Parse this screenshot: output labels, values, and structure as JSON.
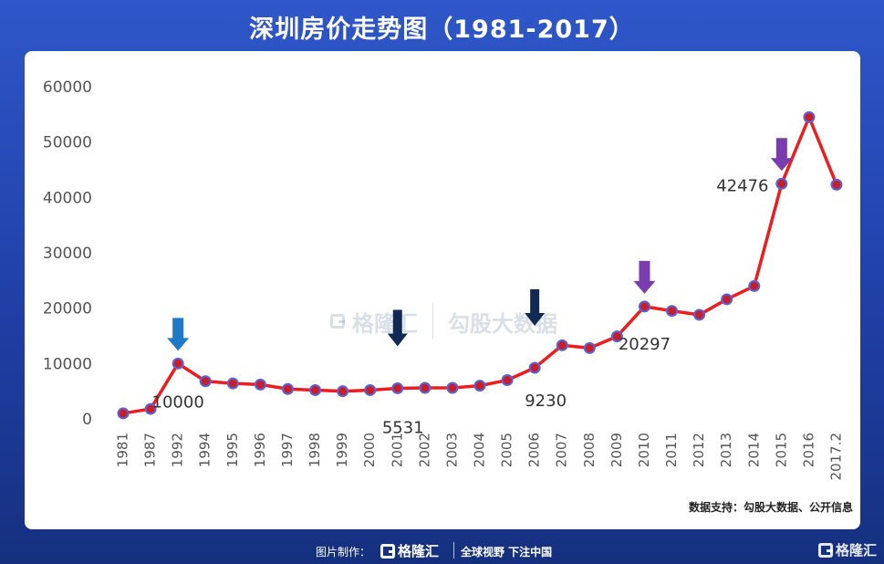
{
  "title": "深圳房价走势图（1981-2017）",
  "source": "数据支持：勾股大数据、公开信息",
  "footer": {
    "made_by_label": "图片制作：",
    "logo_text": "格隆汇",
    "slogan": "全球视野 下注中国",
    "corner_logo_text": "格隆汇"
  },
  "watermark": {
    "left_text": "格隆汇",
    "right_text": "勾股大数据",
    "left_url": "www.gelonghui.com",
    "right_url": "www.gogudata.com"
  },
  "colors": {
    "line": "#ee1c1c",
    "marker_fill": "#c81e2a",
    "marker_stroke": "#5566dd",
    "arrow_light_blue": "#1f78c8",
    "arrow_navy": "#102a55",
    "arrow_purple": "#7a3db0"
  },
  "chart_data": {
    "type": "line",
    "title": "",
    "xlabel": "",
    "ylabel": "",
    "ylim": [
      0,
      60000
    ],
    "yticks": [
      "60000",
      "50000",
      "40000",
      "30000",
      "20000",
      "10000",
      "0"
    ],
    "grid": false,
    "categories": [
      "1981",
      "1987",
      "1992",
      "1994",
      "1995",
      "1996",
      "1997",
      "1998",
      "1999",
      "2000",
      "2001",
      "2002",
      "2003",
      "2004",
      "2005",
      "2006",
      "2007",
      "2008",
      "2009",
      "2010",
      "2011",
      "2012",
      "2013",
      "2014",
      "2015",
      "2016",
      "2017.2"
    ],
    "values": [
      1000,
      1800,
      10000,
      6800,
      6400,
      6200,
      5400,
      5200,
      5000,
      5200,
      5531,
      5600,
      5600,
      6000,
      7000,
      9230,
      13300,
      12800,
      14900,
      20297,
      19500,
      18800,
      21600,
      24000,
      42476,
      54500,
      42300
    ],
    "annotations": [
      {
        "category": "1992",
        "label": "10000",
        "arrow": "arrow_light_blue"
      },
      {
        "category": "2001",
        "label": "5531",
        "arrow": "arrow_navy"
      },
      {
        "category": "2006",
        "label": "9230",
        "arrow": "arrow_navy"
      },
      {
        "category": "2010",
        "label": "20297",
        "arrow": "arrow_purple"
      },
      {
        "category": "2015",
        "label": "42476",
        "arrow": "arrow_purple"
      }
    ]
  }
}
